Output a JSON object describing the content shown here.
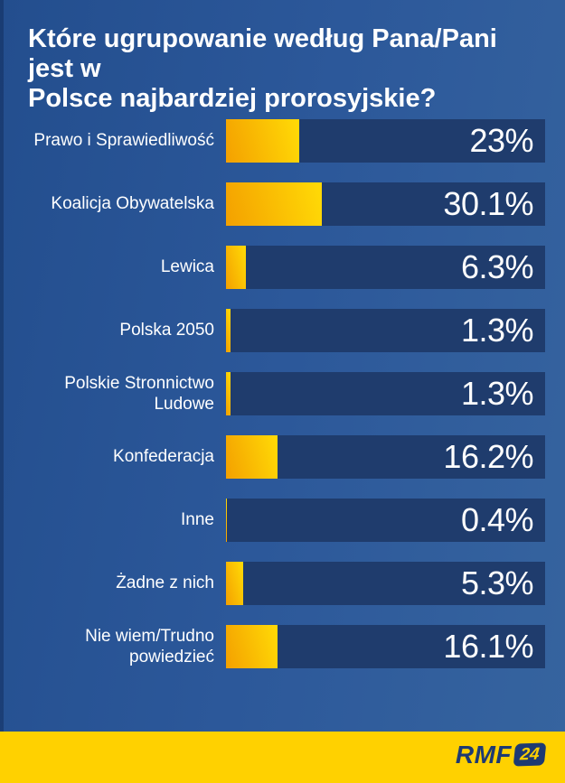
{
  "title": "Które ugrupowanie według Pana/Pani jest w\nPolsce najbardziej prorosyjskie?",
  "chart_data": {
    "type": "bar",
    "orientation": "horizontal",
    "title": "Które ugrupowanie według Pana/Pani jest w Polsce najbardziej prorosyjskie?",
    "unit": "%",
    "xlim": [
      0,
      100
    ],
    "grid": false,
    "legend": false,
    "categories": [
      "Prawo i Sprawiedliwość",
      "Koalicja Obywatelska",
      "Lewica",
      "Polska 2050",
      "Polskie Stronnictwo\nLudowe",
      "Konfederacja",
      "Inne",
      "Żadne z nich",
      "Nie wiem/Trudno\npowiedzieć"
    ],
    "values": [
      23,
      30.1,
      6.3,
      1.3,
      1.3,
      16.2,
      0.4,
      5.3,
      16.1
    ],
    "value_labels": [
      "23%",
      "30.1%",
      "6.3%",
      "1.3%",
      "1.3%",
      "16.2%",
      "0.4%",
      "5.3%",
      "16.1%"
    ]
  },
  "footer": {
    "brand": "RMF",
    "brand_suffix": "24"
  },
  "colors": {
    "background": "#2c589a",
    "bar_track": "#1f3c6d",
    "bar_fill_start": "#f4a000",
    "bar_fill_end": "#ffd806",
    "footer_band": "#ffd100",
    "text": "#ffffff",
    "logo_navy": "#1e3a72"
  }
}
